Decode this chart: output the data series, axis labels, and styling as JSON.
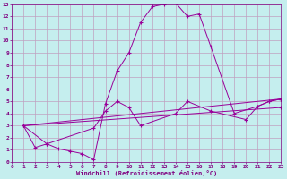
{
  "xlabel": "Windchill (Refroidissement éolien,°C)",
  "bg_color": "#c5eeee",
  "grid_color": "#c0a0c0",
  "line_color": "#990099",
  "xmin": 0,
  "xmax": 23,
  "ymin": 0,
  "ymax": 13,
  "series": [
    {
      "x": [
        1,
        2,
        3,
        4,
        5,
        6,
        7,
        8,
        9,
        10,
        11,
        12,
        13,
        14,
        15,
        16,
        17,
        19,
        21,
        22,
        23
      ],
      "y": [
        3.0,
        1.2,
        1.5,
        1.1,
        0.9,
        0.7,
        0.2,
        4.8,
        7.5,
        9.0,
        11.5,
        12.8,
        13.0,
        13.1,
        12.0,
        12.2,
        9.5,
        4.0,
        4.6,
        5.0,
        5.2
      ]
    },
    {
      "x": [
        1,
        3,
        7,
        8,
        9,
        10,
        11,
        14,
        15,
        17,
        20,
        21,
        22,
        23
      ],
      "y": [
        3.0,
        1.5,
        2.8,
        4.2,
        5.0,
        4.5,
        3.0,
        4.0,
        5.0,
        4.2,
        3.5,
        4.6,
        5.0,
        5.2
      ]
    },
    {
      "x": [
        1,
        23
      ],
      "y": [
        3.0,
        5.2
      ]
    },
    {
      "x": [
        1,
        23
      ],
      "y": [
        3.0,
        4.5
      ]
    }
  ]
}
